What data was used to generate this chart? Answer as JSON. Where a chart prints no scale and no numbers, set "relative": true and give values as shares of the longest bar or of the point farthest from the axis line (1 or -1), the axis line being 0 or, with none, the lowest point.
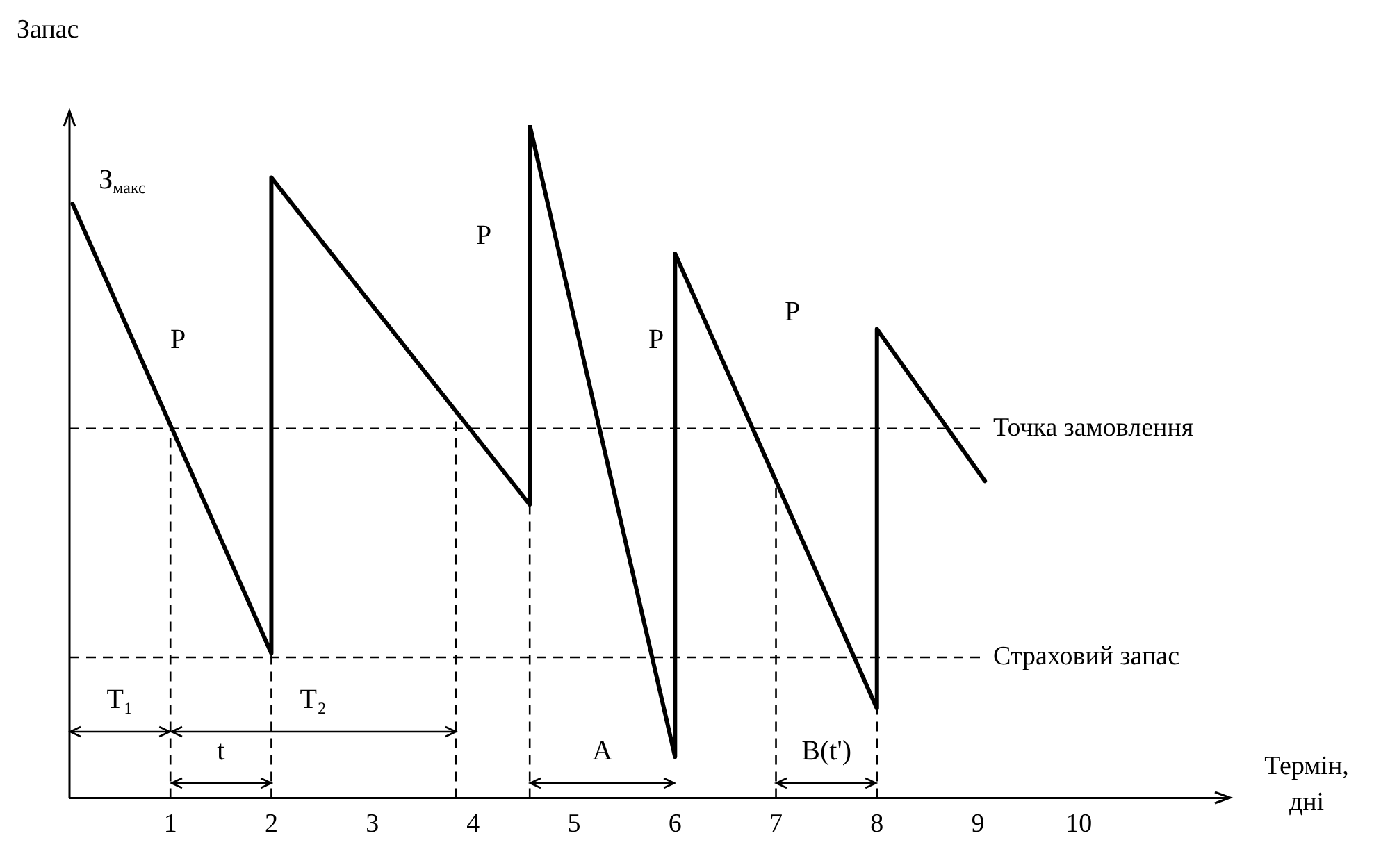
{
  "chart_data": {
    "type": "line",
    "relative": true,
    "xlabel": "Термін, дні",
    "ylabel": "Запас",
    "xlim": [
      0,
      11.5
    ],
    "xticks": [
      1,
      2,
      3,
      4,
      5,
      6,
      7,
      8,
      9,
      10
    ],
    "series": [
      {
        "color": "#000000",
        "x": [
          0.03,
          2,
          2,
          4.56,
          4.56,
          6,
          6,
          8,
          8,
          9.07
        ],
        "values": [
          0.883,
          0.215,
          0.922,
          0.436,
          1,
          0.061,
          0.809,
          0.133,
          0.697,
          0.471
        ]
      }
    ],
    "marker": "none",
    "line_style": "solid",
    "grid": false,
    "legend": false,
    "ref_lines": [
      {
        "axis": "y",
        "value": 0.549,
        "label": "Точка замовлення",
        "line_style": "dashed"
      },
      {
        "axis": "y",
        "value": 0.209,
        "label": "Страховий запас",
        "line_style": "dashed"
      },
      {
        "axis": "x",
        "value": 1,
        "line_style": "dashed"
      },
      {
        "axis": "x",
        "value": 2,
        "line_style": "dashed"
      },
      {
        "axis": "x",
        "value": 3.83,
        "line_style": "dashed"
      },
      {
        "axis": "x",
        "value": 4.56,
        "line_style": "dashed"
      },
      {
        "axis": "x",
        "value": 7,
        "line_style": "dashed"
      },
      {
        "axis": "x",
        "value": 8,
        "line_style": "dashed"
      }
    ],
    "annotations": [
      "З$_{макс}$",
      "P",
      "P",
      "P",
      "P",
      "T₁",
      "T₂",
      "t",
      "A",
      "B(t')"
    ]
  }
}
